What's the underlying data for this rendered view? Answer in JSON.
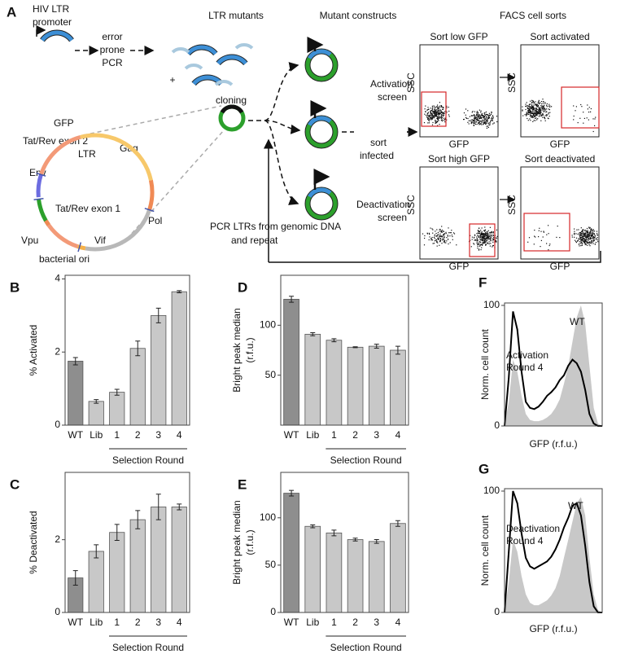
{
  "diagram": {
    "panel": "A",
    "hiv_ltr": [
      "HIV LTR",
      "promoter"
    ],
    "pcr": [
      "error",
      "prone",
      "PCR"
    ],
    "ltr_mutants": "LTR mutants",
    "mutant_constructs": "Mutant constructs",
    "facs": "FACS cell sorts",
    "plus": "+",
    "cloning": "cloning",
    "sort_infected": [
      "sort",
      "infected"
    ],
    "plasmid": [
      "GFP",
      "Tat/Rev exon 2",
      "LTR",
      "Gag",
      "Env",
      "Tat/Rev exon 1",
      "Pol",
      "Vpu",
      "Vif",
      "bacterial ori"
    ],
    "pcr_repeat": [
      "PCR LTRs from genomic DNA",
      "and repeat"
    ],
    "activation_screen": [
      "Activation",
      "screen"
    ],
    "deactivation_screen": [
      "Deactivation",
      "screen"
    ],
    "sorts": [
      {
        "title": "Sort low GFP",
        "ylabel": "SSC",
        "xlabel": "GFP"
      },
      {
        "title": "Sort activated",
        "ylabel": "SSC",
        "xlabel": "GFP"
      },
      {
        "title": "Sort high GFP",
        "ylabel": "SSC",
        "xlabel": "GFP"
      },
      {
        "title": "Sort deactivated",
        "ylabel": "SSC",
        "xlabel": "GFP"
      }
    ]
  },
  "chart_data": [
    {
      "type": "bar",
      "panel": "B",
      "ylabel": "% Activated",
      "xgroup_label": "Selection Round",
      "categories": [
        "WT",
        "Lib",
        "1",
        "2",
        "3",
        "4"
      ],
      "values": [
        1.75,
        0.65,
        0.9,
        2.1,
        3.0,
        3.65
      ],
      "errors": [
        0.1,
        0.05,
        0.08,
        0.2,
        0.2,
        0.03
      ],
      "colors": [
        "#8e8e8e",
        "#c8c8c8",
        "#c8c8c8",
        "#c8c8c8",
        "#c8c8c8",
        "#c8c8c8"
      ],
      "ylim": [
        0,
        4.1
      ],
      "yticks": [
        0,
        2,
        4
      ]
    },
    {
      "type": "bar",
      "panel": "C",
      "ylabel": "% Deactivated",
      "xgroup_label": "Selection Round",
      "categories": [
        "WT",
        "Lib",
        "1",
        "2",
        "3",
        "4"
      ],
      "values": [
        0.95,
        1.68,
        2.2,
        2.55,
        2.9,
        2.9
      ],
      "errors": [
        0.2,
        0.18,
        0.22,
        0.25,
        0.35,
        0.08
      ],
      "colors": [
        "#8e8e8e",
        "#c8c8c8",
        "#c8c8c8",
        "#c8c8c8",
        "#c8c8c8",
        "#c8c8c8"
      ],
      "ylim": [
        0,
        3.85
      ],
      "yticks": [
        0,
        2
      ]
    },
    {
      "type": "bar",
      "panel": "D",
      "ylabel": [
        "Bright peak median",
        "(r.f.u.)"
      ],
      "xgroup_label": "Selection Round",
      "categories": [
        "WT",
        "Lib",
        "1",
        "2",
        "3",
        "4"
      ],
      "values": [
        126,
        91,
        85,
        78,
        79,
        75
      ],
      "errors": [
        3,
        1.5,
        1.5,
        0.5,
        2,
        4
      ],
      "colors": [
        "#8e8e8e",
        "#c8c8c8",
        "#c8c8c8",
        "#c8c8c8",
        "#c8c8c8",
        "#c8c8c8"
      ],
      "ylim": [
        0,
        150
      ],
      "yticks": [
        50,
        100
      ]
    },
    {
      "type": "bar",
      "panel": "E",
      "ylabel": [
        "Bright peak median",
        "(r.f.u.)"
      ],
      "xgroup_label": "Selection Round",
      "categories": [
        "WT",
        "Lib",
        "1",
        "2",
        "3",
        "4"
      ],
      "values": [
        126,
        91,
        84,
        77,
        75,
        94
      ],
      "errors": [
        3,
        1.5,
        3,
        1.5,
        2,
        3
      ],
      "colors": [
        "#8e8e8e",
        "#c8c8c8",
        "#c8c8c8",
        "#c8c8c8",
        "#c8c8c8",
        "#c8c8c8"
      ],
      "ylim": [
        0,
        148
      ],
      "yticks": [
        0,
        50,
        100
      ]
    },
    {
      "type": "line",
      "panel": "F",
      "ylabel": "Norm. cell count",
      "xlabel": "GFP (r.f.u.)",
      "ylim": [
        0,
        102
      ],
      "yticks": [
        0,
        100
      ],
      "annotations": [
        [
          "WT"
        ],
        [
          "Activation",
          "Round 4"
        ]
      ],
      "series": [
        {
          "color": "#c8c8c8",
          "fill": true,
          "values": [
            0,
            20,
            55,
            45,
            25,
            10,
            5,
            4,
            4,
            5,
            7,
            10,
            15,
            22,
            35,
            50,
            70,
            90,
            100,
            85,
            50,
            15,
            2,
            0
          ]
        },
        {
          "color": "#000000",
          "fill": false,
          "values": [
            0,
            40,
            95,
            80,
            45,
            20,
            15,
            14,
            16,
            20,
            25,
            28,
            32,
            38,
            42,
            50,
            55,
            52,
            45,
            30,
            10,
            2,
            0,
            0
          ]
        }
      ]
    },
    {
      "type": "line",
      "panel": "G",
      "ylabel": "Norm. cell count",
      "xlabel": "GFP (r.f.u.)",
      "ylim": [
        0,
        102
      ],
      "yticks": [
        0,
        100
      ],
      "annotations": [
        [
          "WT"
        ],
        [
          "Deactivation",
          "Round 4"
        ]
      ],
      "series": [
        {
          "color": "#c8c8c8",
          "fill": true,
          "values": [
            0,
            25,
            60,
            50,
            30,
            15,
            8,
            6,
            6,
            8,
            10,
            14,
            20,
            30,
            45,
            60,
            75,
            90,
            95,
            80,
            45,
            15,
            2,
            0
          ]
        },
        {
          "color": "#000000",
          "fill": false,
          "values": [
            0,
            50,
            100,
            90,
            65,
            45,
            38,
            36,
            38,
            40,
            42,
            46,
            52,
            60,
            70,
            78,
            88,
            90,
            80,
            55,
            25,
            5,
            0,
            0
          ]
        }
      ]
    }
  ]
}
